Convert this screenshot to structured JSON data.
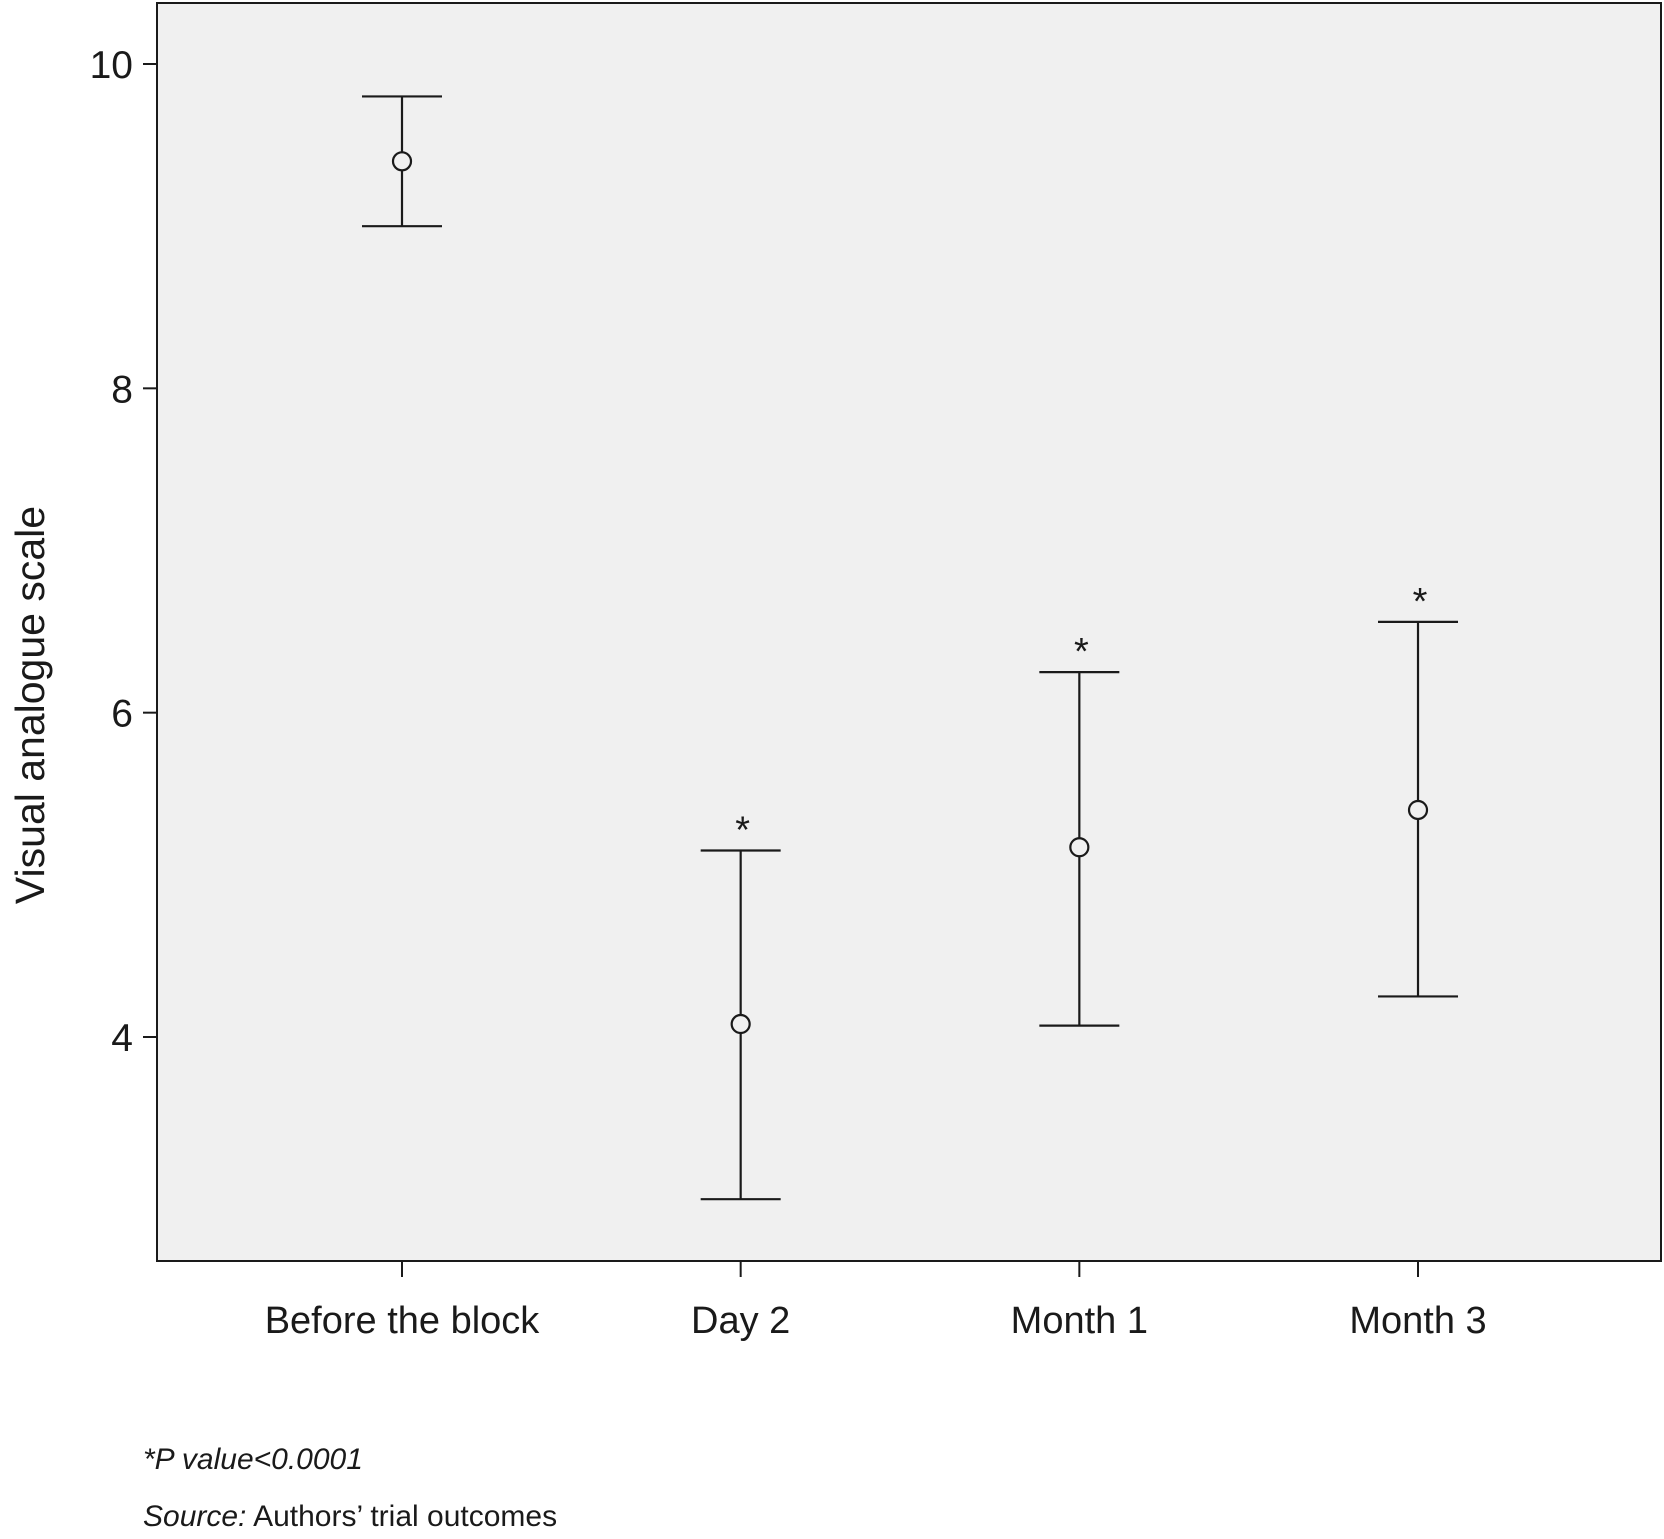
{
  "chart_data": {
    "type": "errorbar",
    "categories": [
      "Before the block",
      "Day 2",
      "Month 1",
      "Month 3"
    ],
    "series": [
      {
        "points": [
          {
            "category": "Before the block",
            "mean": 9.4,
            "lower": 9.0,
            "upper": 9.8,
            "significant": false
          },
          {
            "category": "Day 2",
            "mean": 4.08,
            "lower": 3.0,
            "upper": 5.15,
            "significant": true
          },
          {
            "category": "Month 1",
            "mean": 5.17,
            "lower": 4.07,
            "upper": 6.25,
            "significant": true
          },
          {
            "category": "Month 3",
            "mean": 5.4,
            "lower": 4.25,
            "upper": 6.56,
            "significant": true
          }
        ]
      }
    ],
    "ylabel": "Visual analogue scale",
    "xlabel": "",
    "ylim": [
      2.6,
      10.4
    ],
    "yticks": [
      4,
      6,
      8,
      10
    ],
    "significance_marker": "*",
    "grid": false,
    "plot_background": "#f0f0f0",
    "line_color": "#1a1a1a"
  },
  "footnotes": {
    "p_value": "*P value<0.0001",
    "source_label": "Source:",
    "source_text": " Authors’ trial outcomes"
  }
}
